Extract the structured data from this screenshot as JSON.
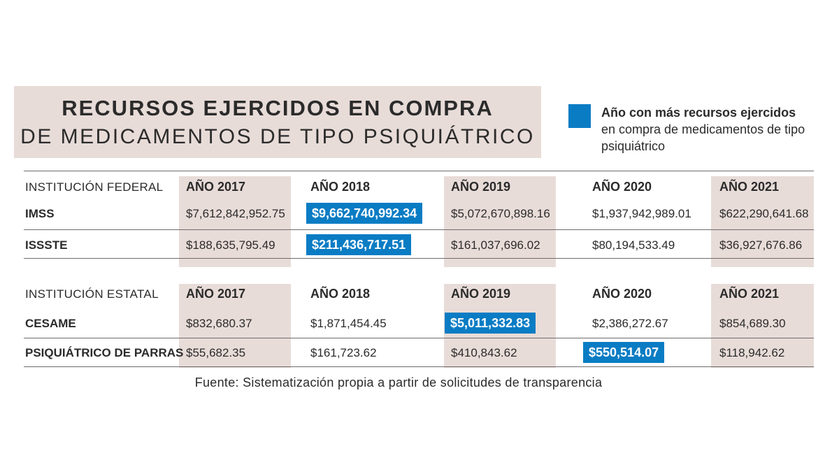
{
  "header": {
    "title_line1": "RECURSOS EJERCIDOS EN COMPRA",
    "title_line2": "DE MEDICAMENTOS DE TIPO PSIQUIÁTRICO"
  },
  "legend": {
    "bold": "Año con más recursos ejercidos",
    "text": "en compra de medicamentos de tipo psiquiátrico",
    "color": "#0a7cc4"
  },
  "colors": {
    "highlight": "#0a7cc4",
    "band": "#e8dcd8"
  },
  "chart_data": {
    "type": "table",
    "title": "RECURSOS EJERCIDOS EN COMPRA DE MEDICAMENTOS DE TIPO PSIQUIÁTRICO",
    "tables": [
      {
        "header": "INSTITUCIÓN FEDERAL",
        "columns": [
          "AÑO 2017",
          "AÑO 2018",
          "AÑO 2019",
          "AÑO 2020",
          "AÑO 2021"
        ],
        "rows": [
          {
            "name": "IMSS",
            "values": [
              "$7,612,842,952.75",
              "$9,662,740,992.34",
              "$5,072,670,898.16",
              "$1,937,942,989.01",
              "$622,290,641.68"
            ],
            "highlight": 1
          },
          {
            "name": "ISSSTE",
            "values": [
              "$188,635,795.49",
              "$211,436,717.51",
              "$161,037,696.02",
              "$80,194,533.49",
              "$36,927,676.86"
            ],
            "highlight": 1
          }
        ]
      },
      {
        "header": "INSTITUCIÓN ESTATAL",
        "columns": [
          "AÑO 2017",
          "AÑO 2018",
          "AÑO 2019",
          "AÑO 2020",
          "AÑO 2021"
        ],
        "rows": [
          {
            "name": "CESAME",
            "values": [
              "$832,680.37",
              "$1,871,454.45",
              "$5,011,332.83",
              "$2,386,272.67",
              "$854,689.30"
            ],
            "highlight": 2
          },
          {
            "name": "PSIQUIÁTRICO DE PARRAS",
            "values": [
              "$55,682.35",
              "$161,723.62",
              "$410,843.62",
              "$550,514.07",
              "$118,942.62"
            ],
            "highlight": 3
          }
        ]
      }
    ]
  },
  "source": "Fuente: Sistematización propia a partir de solicitudes de transparencia"
}
